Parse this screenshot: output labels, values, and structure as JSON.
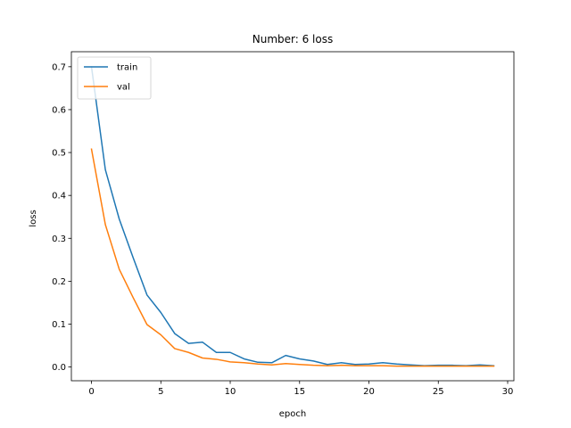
{
  "chart_data": {
    "type": "line",
    "title": "Number: 6 loss",
    "xlabel": "epoch",
    "ylabel": "loss",
    "xlim": [
      -1.45,
      30.45
    ],
    "ylim": [
      -0.032,
      0.735
    ],
    "xticks": [
      0,
      5,
      10,
      15,
      20,
      25,
      30
    ],
    "xtick_labels": [
      "0",
      "5",
      "10",
      "15",
      "20",
      "25",
      "30"
    ],
    "yticks": [
      0.0,
      0.1,
      0.2,
      0.3,
      0.4,
      0.5,
      0.6,
      0.7
    ],
    "ytick_labels": [
      "0.0",
      "0.1",
      "0.2",
      "0.3",
      "0.4",
      "0.5",
      "0.6",
      "0.7"
    ],
    "grid": false,
    "legend_position": "top-left",
    "x": [
      0,
      1,
      2,
      3,
      4,
      5,
      6,
      7,
      8,
      9,
      10,
      11,
      12,
      13,
      14,
      15,
      16,
      17,
      18,
      19,
      20,
      21,
      22,
      23,
      24,
      25,
      26,
      27,
      28,
      29
    ],
    "series": [
      {
        "name": "train",
        "color": "#1f77b4",
        "values": [
          0.7,
          0.46,
          0.345,
          0.255,
          0.168,
          0.127,
          0.078,
          0.055,
          0.058,
          0.034,
          0.034,
          0.019,
          0.011,
          0.01,
          0.027,
          0.019,
          0.014,
          0.006,
          0.01,
          0.006,
          0.007,
          0.01,
          0.007,
          0.005,
          0.003,
          0.004,
          0.004,
          0.003,
          0.005,
          0.003
        ]
      },
      {
        "name": "val",
        "color": "#ff7f0e",
        "values": [
          0.508,
          0.332,
          0.228,
          0.162,
          0.099,
          0.075,
          0.043,
          0.034,
          0.021,
          0.018,
          0.012,
          0.01,
          0.007,
          0.005,
          0.008,
          0.006,
          0.004,
          0.003,
          0.004,
          0.003,
          0.003,
          0.003,
          0.002,
          0.002,
          0.002,
          0.002,
          0.002,
          0.002,
          0.002,
          0.002
        ]
      }
    ]
  }
}
